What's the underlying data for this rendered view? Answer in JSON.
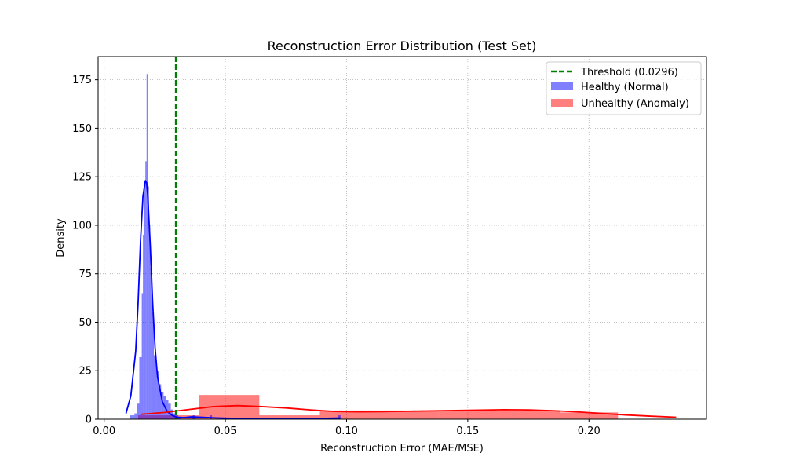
{
  "chart_data": {
    "type": "histogram",
    "title": "Reconstruction Error Distribution (Test Set)",
    "xlabel": "Reconstruction Error (MAE/MSE)",
    "ylabel": "Density",
    "xlim": [
      -0.0025,
      0.2485
    ],
    "ylim": [
      0,
      187
    ],
    "x_ticks": [
      0.0,
      0.05,
      0.1,
      0.15,
      0.2
    ],
    "x_tick_labels": [
      "0.00",
      "0.05",
      "0.10",
      "0.15",
      "0.20"
    ],
    "y_ticks": [
      0,
      25,
      50,
      75,
      100,
      125,
      150,
      175
    ],
    "y_tick_labels": [
      "0",
      "25",
      "50",
      "75",
      "100",
      "125",
      "150",
      "175"
    ],
    "grid": true,
    "legend_position": "top-right",
    "threshold": {
      "label": "Threshold (0.0296)",
      "value": 0.0296,
      "color": "#008000",
      "style": "dashed"
    },
    "series": [
      {
        "name": "Healthy (Normal)",
        "color": "#0000ff",
        "bins": [
          [
            0.0105,
            0.0115,
            2
          ],
          [
            0.0115,
            0.0125,
            2
          ],
          [
            0.0125,
            0.0135,
            3
          ],
          [
            0.0135,
            0.0145,
            8
          ],
          [
            0.0145,
            0.0155,
            32
          ],
          [
            0.0155,
            0.016,
            65
          ],
          [
            0.016,
            0.0165,
            95
          ],
          [
            0.0165,
            0.017,
            123
          ],
          [
            0.017,
            0.0175,
            133
          ],
          [
            0.0175,
            0.018,
            178
          ],
          [
            0.018,
            0.0185,
            120
          ],
          [
            0.0185,
            0.019,
            100
          ],
          [
            0.019,
            0.0195,
            78
          ],
          [
            0.0195,
            0.0205,
            55
          ],
          [
            0.0205,
            0.0215,
            33
          ],
          [
            0.0215,
            0.0225,
            25
          ],
          [
            0.0225,
            0.0235,
            18
          ],
          [
            0.0235,
            0.0245,
            14
          ],
          [
            0.0245,
            0.0255,
            12
          ],
          [
            0.0255,
            0.0265,
            10
          ],
          [
            0.0265,
            0.0275,
            8
          ],
          [
            0.0275,
            0.0285,
            5
          ],
          [
            0.0285,
            0.0295,
            3
          ],
          [
            0.0295,
            0.0305,
            2
          ],
          [
            0.0305,
            0.0315,
            1
          ],
          [
            0.0365,
            0.0375,
            2
          ],
          [
            0.0435,
            0.0445,
            2
          ],
          [
            0.0965,
            0.0975,
            2
          ]
        ],
        "kde_x": [
          0.009,
          0.011,
          0.013,
          0.014,
          0.015,
          0.016,
          0.017,
          0.0175,
          0.018,
          0.019,
          0.02,
          0.021,
          0.022,
          0.024,
          0.026,
          0.028,
          0.03,
          0.033,
          0.036,
          0.04,
          0.045,
          0.05,
          0.06,
          0.07,
          0.08,
          0.09,
          0.0975
        ],
        "kde_y": [
          3,
          12,
          35,
          60,
          92,
          115,
          123,
          122,
          115,
          90,
          60,
          37,
          22,
          9,
          4,
          2,
          1,
          0.8,
          1.2,
          1.0,
          0.7,
          0.5,
          0.3,
          0.2,
          0.2,
          0.4,
          0.6
        ]
      },
      {
        "name": "Unhealthy (Anomaly)",
        "color": "#ff0000",
        "bins": [
          [
            0.014,
            0.039,
            2
          ],
          [
            0.039,
            0.064,
            12.5
          ],
          [
            0.064,
            0.089,
            2
          ],
          [
            0.089,
            0.138,
            4.5
          ],
          [
            0.138,
            0.188,
            4.5
          ],
          [
            0.188,
            0.212,
            3.5
          ]
        ],
        "kde_x": [
          0.015,
          0.025,
          0.035,
          0.045,
          0.055,
          0.065,
          0.075,
          0.085,
          0.095,
          0.105,
          0.115,
          0.125,
          0.135,
          0.145,
          0.155,
          0.165,
          0.175,
          0.185,
          0.195,
          0.205,
          0.215,
          0.225,
          0.236
        ],
        "kde_y": [
          2.5,
          3.5,
          5.0,
          6.5,
          7.0,
          6.5,
          5.8,
          4.8,
          4.0,
          3.8,
          3.9,
          4.1,
          4.3,
          4.5,
          4.7,
          4.9,
          4.8,
          4.4,
          3.8,
          3.0,
          2.2,
          1.6,
          1.0
        ]
      }
    ]
  }
}
